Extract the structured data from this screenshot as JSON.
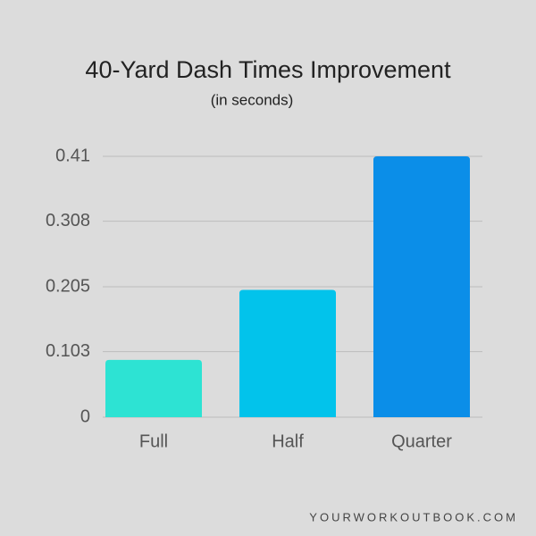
{
  "chart_data": {
    "type": "bar",
    "title": "40-Yard Dash Times Improvement",
    "subtitle": "(in seconds)",
    "categories": [
      "Full",
      "Half",
      "Quarter"
    ],
    "values": [
      0.09,
      0.2,
      0.41
    ],
    "colors": [
      "#2de3d3",
      "#02c3eb",
      "#0b8ee8"
    ],
    "ylim": [
      0,
      0.41
    ],
    "yticks": [
      0,
      0.103,
      0.205,
      0.308,
      0.41
    ],
    "grid": true,
    "watermark": "YOURWORKOUTBOOK.COM"
  }
}
